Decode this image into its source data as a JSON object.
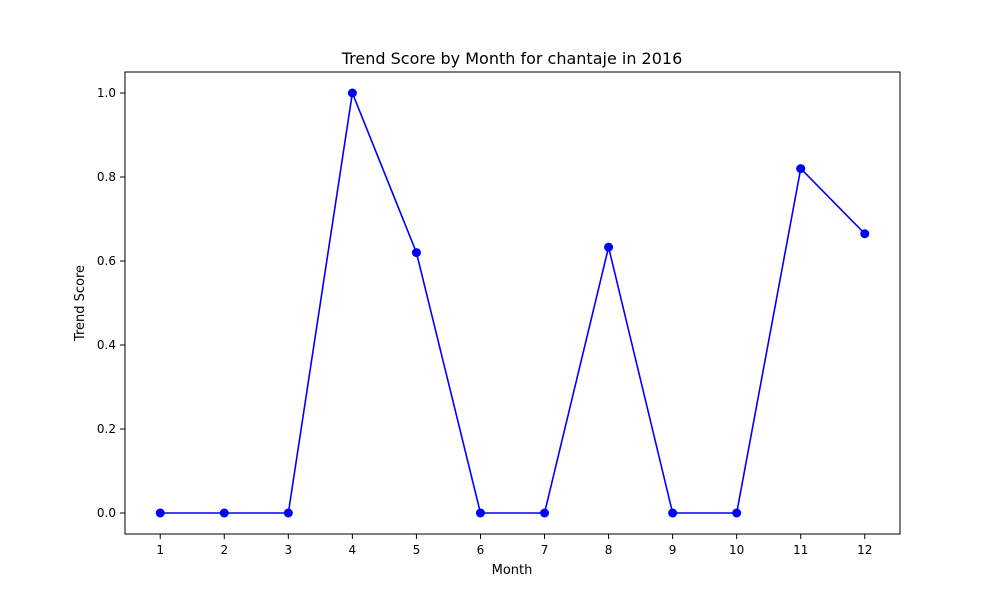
{
  "chart_data": {
    "type": "line",
    "title": "Trend Score by Month for chantaje in 2016",
    "xlabel": "Month",
    "ylabel": "Trend Score",
    "x": [
      1,
      2,
      3,
      4,
      5,
      6,
      7,
      8,
      9,
      10,
      11,
      12
    ],
    "x_tick_labels": [
      "1",
      "2",
      "3",
      "4",
      "5",
      "6",
      "7",
      "8",
      "9",
      "10",
      "11",
      "12"
    ],
    "y_ticks": [
      0.0,
      0.2,
      0.4,
      0.6,
      0.8,
      1.0
    ],
    "y_tick_labels": [
      "0.0",
      "0.2",
      "0.4",
      "0.6",
      "0.8",
      "1.0"
    ],
    "xlim": [
      0.45,
      12.55
    ],
    "ylim": [
      -0.05,
      1.05
    ],
    "grid": false,
    "series": [
      {
        "color": "#0000ff",
        "marker": "circle",
        "values": [
          0.0,
          0.0,
          0.0,
          1.0,
          0.62,
          0.0,
          0.0,
          0.633,
          0.0,
          0.0,
          0.82,
          0.665
        ]
      }
    ]
  }
}
